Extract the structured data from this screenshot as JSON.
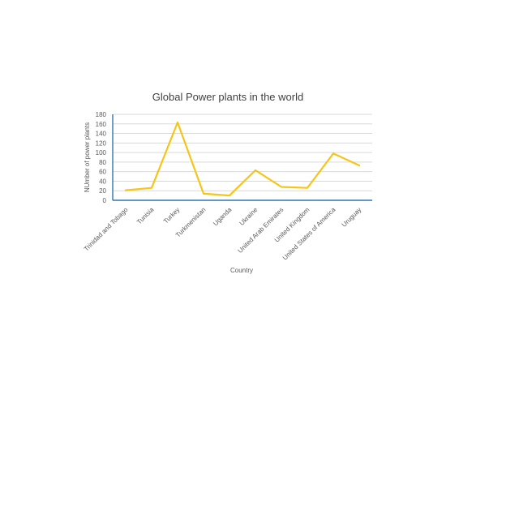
{
  "chart_data": {
    "type": "line",
    "title": "Global Power plants in the world",
    "xlabel": "Country",
    "ylabel": "NUmber of power plants",
    "categories": [
      "Trinidad and Tobago",
      "Tunisia",
      "Turkey",
      "Turkmenistan",
      "Uganda",
      "Ukraine",
      "United Arab Emirates",
      "United Kingdom",
      "United States of America",
      "Uruguay"
    ],
    "series": [
      {
        "values": [
          21,
          26,
          163,
          14,
          10,
          63,
          28,
          26,
          98,
          73
        ],
        "color": "#f5c518"
      }
    ],
    "ylim": [
      0,
      180
    ],
    "yticks": [
      0,
      20,
      40,
      60,
      80,
      100,
      120,
      140,
      160,
      180
    ],
    "grid": true,
    "legend": "none"
  }
}
